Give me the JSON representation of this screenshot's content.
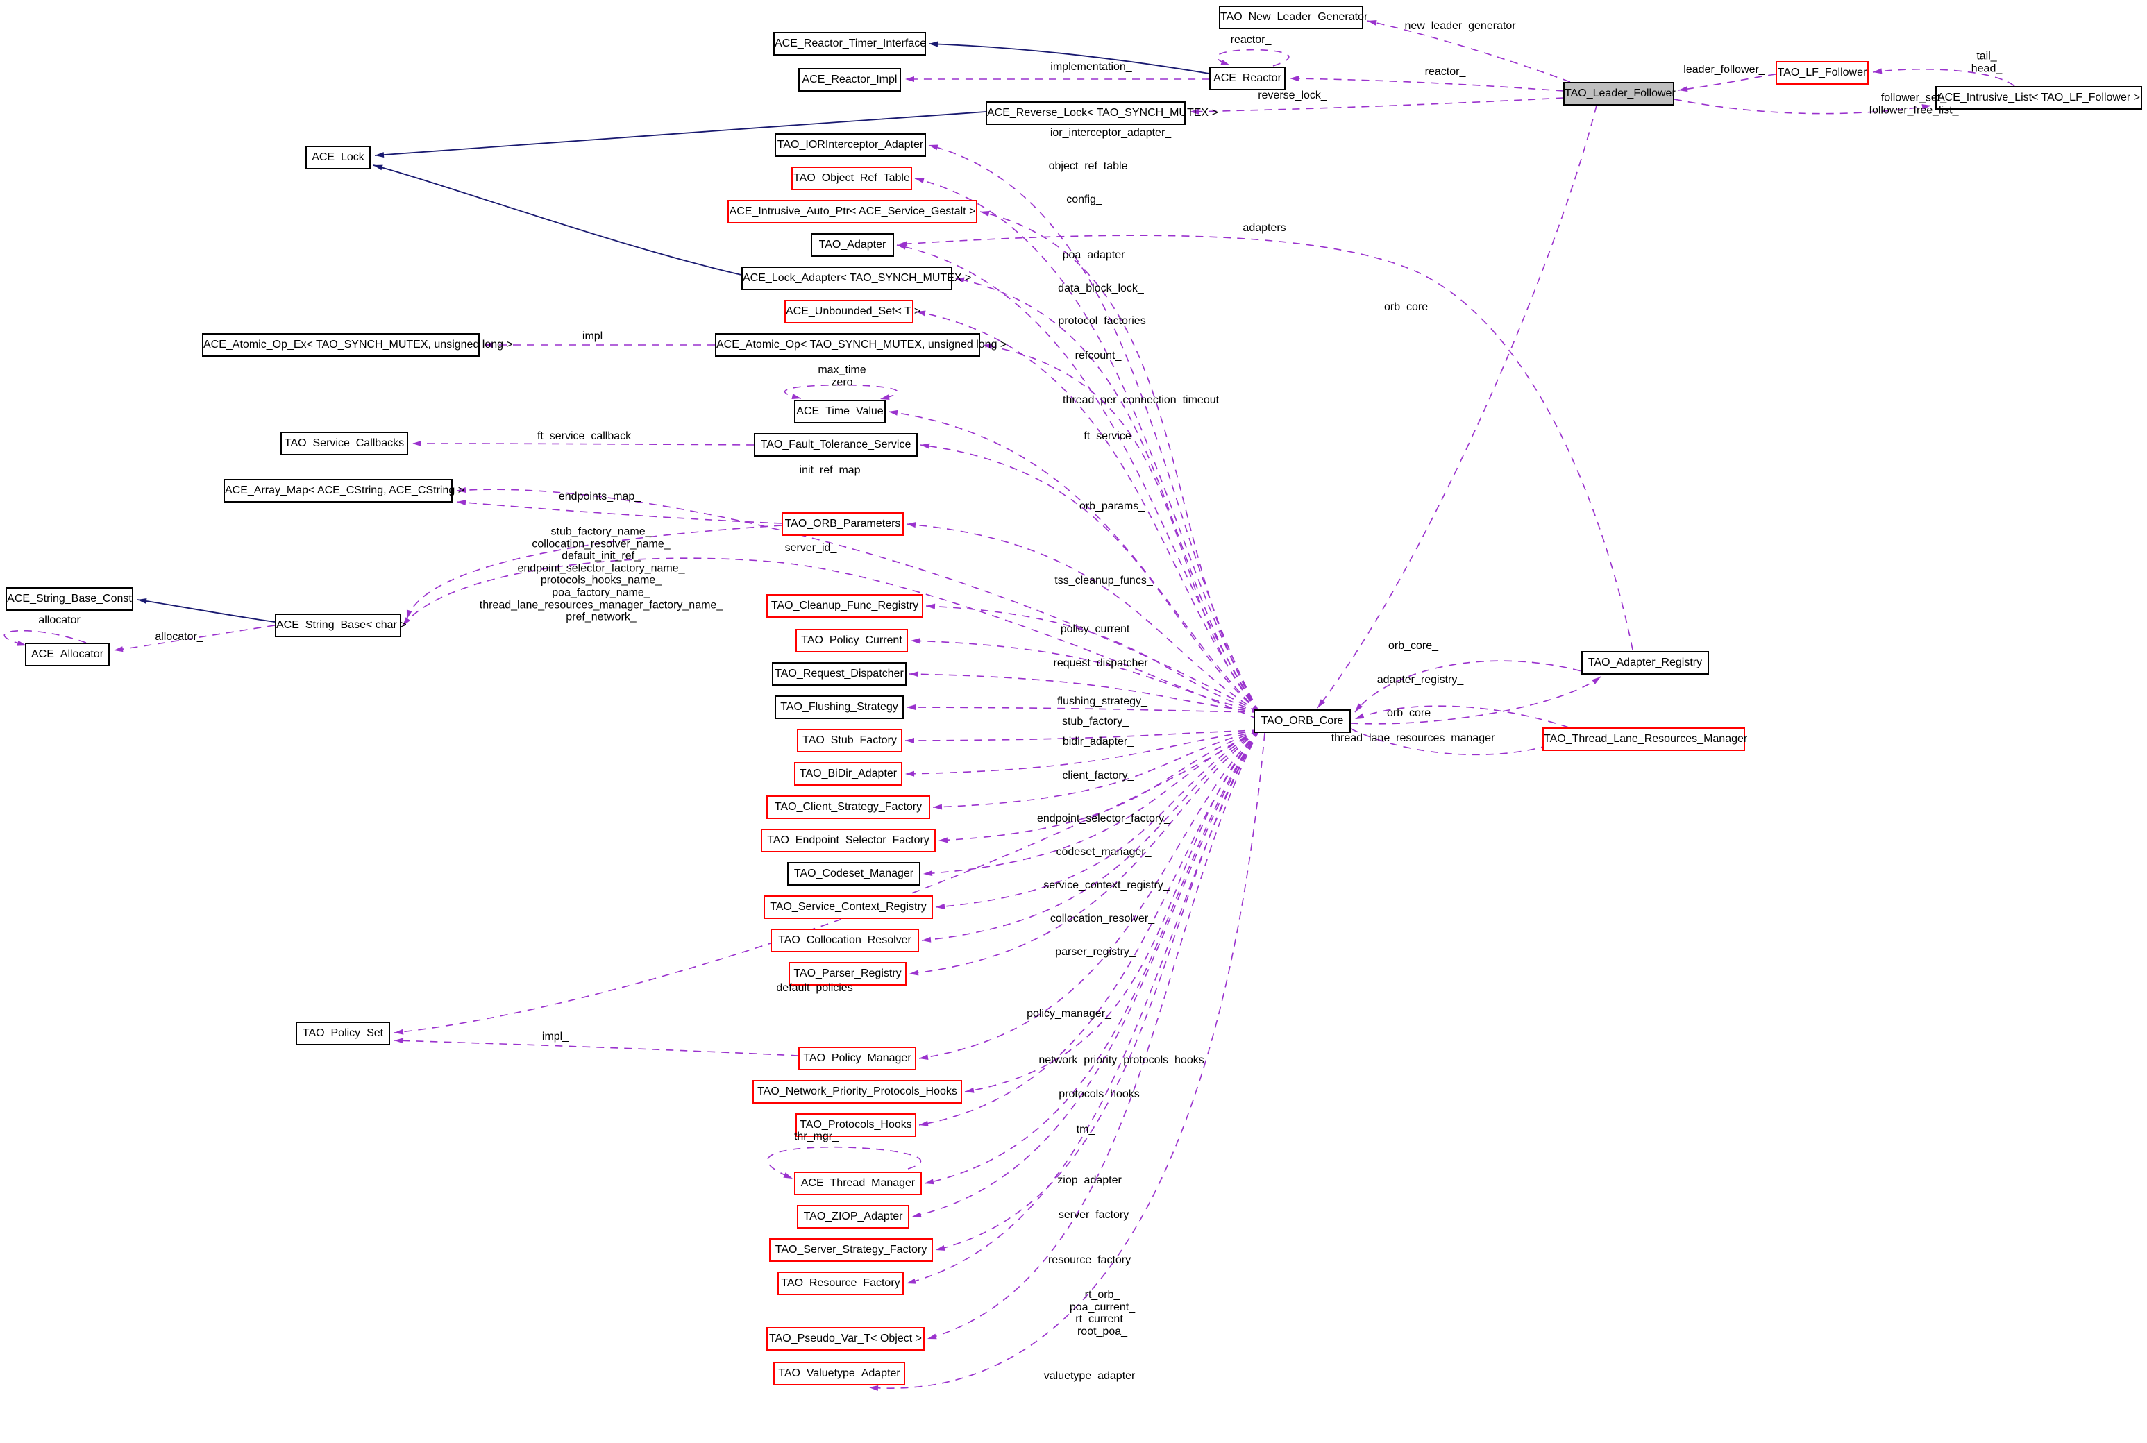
{
  "diagram": {
    "main_class": "TAO_Leader_Follower",
    "colors": {
      "association_edge": "#9a32cd",
      "inheritance_edge": "#191970",
      "node_border": "#000000",
      "truncated_node_border": "#ff0000",
      "main_node_fill": "#bfbfbf",
      "background": "#ffffff"
    }
  },
  "nodes": {
    "tao_new_leader_generator": "TAO_New_Leader_Generator",
    "ace_reactor_timer_interface": "ACE_Reactor_Timer_Interface",
    "ace_reactor_impl": "ACE_Reactor_Impl",
    "ace_reactor": "ACE_Reactor",
    "tao_leader_follower": "TAO_Leader_Follower",
    "tao_lf_follower": "TAO_LF_Follower",
    "ace_intrusive_list": "ACE_Intrusive_List< TAO_LF_Follower >",
    "ace_reverse_lock": "ACE_Reverse_Lock< TAO_SYNCH_MUTEX >",
    "ace_lock": "ACE_Lock",
    "tao_ior_interceptor_adapter": "TAO_IORInterceptor_Adapter",
    "tao_object_ref_table": "TAO_Object_Ref_Table",
    "ace_intrusive_auto_ptr": "ACE_Intrusive_Auto_Ptr< ACE_Service_Gestalt >",
    "tao_adapter": "TAO_Adapter",
    "ace_lock_adapter": "ACE_Lock_Adapter< TAO_SYNCH_MUTEX >",
    "ace_unbounded_set": "ACE_Unbounded_Set< T >",
    "ace_atomic_op": "ACE_Atomic_Op< TAO_SYNCH_MUTEX, unsigned long >",
    "ace_atomic_op_ex": "ACE_Atomic_Op_Ex< TAO_SYNCH_MUTEX, unsigned long >",
    "ace_time_value": "ACE_Time_Value",
    "tao_fault_tolerance_service": "TAO_Fault_Tolerance_Service",
    "tao_service_callbacks": "TAO_Service_Callbacks",
    "ace_array_map": "ACE_Array_Map< ACE_CString, ACE_CString >",
    "tao_orb_parameters": "TAO_ORB_Parameters",
    "ace_string_base_const": "ACE_String_Base_Const",
    "ace_string_base": "ACE_String_Base< char >",
    "ace_allocator": "ACE_Allocator",
    "tao_cleanup_func_registry": "TAO_Cleanup_Func_Registry",
    "tao_policy_current": "TAO_Policy_Current",
    "tao_request_dispatcher": "TAO_Request_Dispatcher",
    "tao_flushing_strategy": "TAO_Flushing_Strategy",
    "tao_stub_factory": "TAO_Stub_Factory",
    "tao_bidir_adapter": "TAO_BiDir_Adapter",
    "tao_client_strategy_factory": "TAO_Client_Strategy_Factory",
    "tao_endpoint_selector_factory": "TAO_Endpoint_Selector_Factory",
    "tao_codeset_manager": "TAO_Codeset_Manager",
    "tao_service_context_registry": "TAO_Service_Context_Registry",
    "tao_collocation_resolver": "TAO_Collocation_Resolver",
    "tao_parser_registry": "TAO_Parser_Registry",
    "tao_policy_set": "TAO_Policy_Set",
    "tao_policy_manager": "TAO_Policy_Manager",
    "tao_network_priority_protocols_hooks": "TAO_Network_Priority_Protocols_Hooks",
    "tao_protocols_hooks": "TAO_Protocols_Hooks",
    "ace_thread_manager": "ACE_Thread_Manager",
    "tao_ziop_adapter": "TAO_ZIOP_Adapter",
    "tao_server_strategy_factory": "TAO_Server_Strategy_Factory",
    "tao_resource_factory": "TAO_Resource_Factory",
    "tao_pseudo_var_t": "TAO_Pseudo_Var_T< Object >",
    "tao_valuetype_adapter": "TAO_Valuetype_Adapter",
    "tao_orb_core": "TAO_ORB_Core",
    "tao_adapter_registry": "TAO_Adapter_Registry",
    "tao_thread_lane_resources_manager": "TAO_Thread_Lane_Resources_Manager"
  },
  "edge_labels": {
    "new_leader_generator": "new_leader_generator_",
    "reactor_self": "reactor_",
    "reactor": "reactor_",
    "implementation": "implementation_",
    "reverse_lock": "reverse_lock_",
    "leader_follower": "leader_follower_",
    "tail_head": "tail_\nhead_",
    "follower_set": "follower_set_\nfollower_free_list_",
    "orb_core_lf": "orb_core_",
    "adapters": "adapters_",
    "ior_interceptor_adapter": "ior_interceptor_adapter_",
    "object_ref_table": "object_ref_table_",
    "config": "config_",
    "poa_adapter": "poa_adapter_",
    "data_block_lock": "data_block_lock_",
    "protocol_factories": "protocol_factories_",
    "refcount": "refcount_",
    "impl_atomic": "impl_",
    "max_time_zero": "max_time\nzero",
    "thread_per_connection_timeout": "thread_per_connection_timeout_",
    "ft_service": "ft_service_",
    "ft_service_callback": "ft_service_callback_",
    "init_ref_map": "init_ref_map_",
    "endpoints_map": "endpoints_map_",
    "orb_params": "orb_params_",
    "orb_parameters_names": "stub_factory_name_\ncollocation_resolver_name_\ndefault_init_ref_\nendpoint_selector_factory_name_\nprotocols_hooks_name_\npoa_factory_name_\nthread_lane_resources_manager_factory_name_\npref_network_",
    "server_id": "server_id_",
    "allocator_self": "allocator_",
    "allocator": "allocator_",
    "tss_cleanup_funcs": "tss_cleanup_funcs_",
    "policy_current": "policy_current_",
    "request_dispatcher": "request_dispatcher_",
    "flushing_strategy": "flushing_strategy_",
    "stub_factory": "stub_factory_",
    "bidir_adapter": "bidir_adapter_",
    "client_factory": "client_factory_",
    "endpoint_selector_factory": "endpoint_selector_factory_",
    "codeset_manager": "codeset_manager_",
    "service_context_registry": "service_context_registry_",
    "collocation_resolver": "collocation_resolver_",
    "parser_registry": "parser_registry_",
    "default_policies": "default_policies_",
    "policy_manager": "policy_manager_",
    "impl_policy": "impl_",
    "network_priority_protocols_hooks": "network_priority_protocols_hooks_",
    "protocols_hooks": "protocols_hooks_",
    "tm": "tm_",
    "thr_mgr": "thr_mgr_",
    "ziop_adapter": "ziop_adapter_",
    "server_factory": "server_factory_",
    "resource_factory": "resource_factory_",
    "rt_orb_group": "rt_orb_\npoa_current_\nrt_current_\nroot_poa_",
    "valuetype_adapter": "valuetype_adapter_",
    "orb_core_ar": "orb_core_",
    "adapter_registry": "adapter_registry_",
    "orb_core_tl": "orb_core_",
    "thread_lane_resources_manager": "thread_lane_resources_manager_"
  }
}
